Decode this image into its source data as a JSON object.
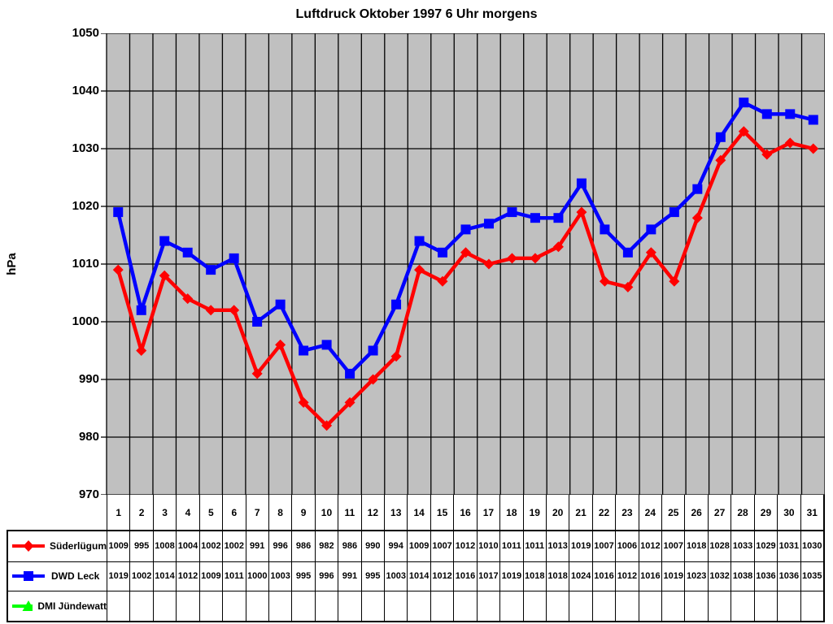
{
  "title": "Luftdruck Oktober 1997 6 Uhr morgens",
  "y_axis_label": "hPa",
  "chart_data": {
    "type": "line",
    "title": "Luftdruck Oktober 1997 6 Uhr morgens",
    "ylabel": "hPa",
    "xlabel": "",
    "x": [
      1,
      2,
      3,
      4,
      5,
      6,
      7,
      8,
      9,
      10,
      11,
      12,
      13,
      14,
      15,
      16,
      17,
      18,
      19,
      20,
      21,
      22,
      23,
      24,
      25,
      26,
      27,
      28,
      29,
      30,
      31
    ],
    "ylim": [
      970,
      1050
    ],
    "ytick_step": 10,
    "grid": true,
    "plot_bg_color": "#C0C0C0",
    "gridline_color": "#000000",
    "legend_position": "table-left",
    "series": [
      {
        "name": "Süderlügum",
        "color": "#FF0000",
        "marker": "diamond",
        "values": [
          1009,
          995,
          1008,
          1004,
          1002,
          1002,
          991,
          996,
          986,
          982,
          986,
          990,
          994,
          1009,
          1007,
          1012,
          1010,
          1011,
          1011,
          1013,
          1019,
          1007,
          1006,
          1012,
          1007,
          1018,
          1028,
          1033,
          1029,
          1031,
          1030
        ]
      },
      {
        "name": "DWD Leck",
        "color": "#0000FF",
        "marker": "square",
        "values": [
          1019,
          1002,
          1014,
          1012,
          1009,
          1011,
          1000,
          1003,
          995,
          996,
          991,
          995,
          1003,
          1014,
          1012,
          1016,
          1017,
          1019,
          1018,
          1018,
          1024,
          1016,
          1012,
          1016,
          1019,
          1023,
          1032,
          1038,
          1036,
          1036,
          1035
        ]
      },
      {
        "name": "DMI Jündewatt",
        "color": "#00FF00",
        "marker": "triangle",
        "values": []
      }
    ]
  }
}
